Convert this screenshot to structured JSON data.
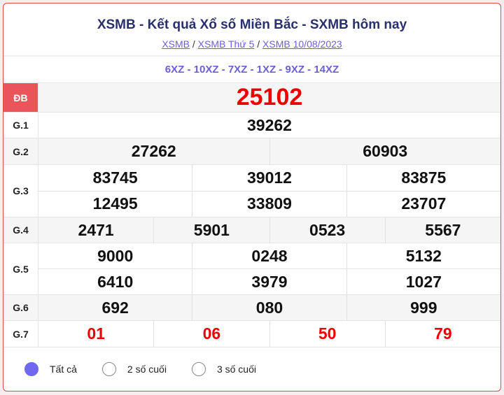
{
  "header": {
    "title": "XSMB - Kết quả Xổ số Miền Bắc - SXMB hôm nay",
    "breadcrumb": [
      "XSMB",
      "XSMB Thứ 5",
      "XSMB 10/08/2023"
    ],
    "separator": "/"
  },
  "codes": "6XZ - 10XZ - 7XZ - 1XZ - 9XZ - 14XZ",
  "prizes": [
    {
      "label": "ĐB",
      "rows": [
        [
          "25102"
        ]
      ]
    },
    {
      "label": "G.1",
      "rows": [
        [
          "39262"
        ]
      ]
    },
    {
      "label": "G.2",
      "rows": [
        [
          "27262",
          "60903"
        ]
      ]
    },
    {
      "label": "G.3",
      "rows": [
        [
          "83745",
          "39012",
          "83875"
        ],
        [
          "12495",
          "33809",
          "23707"
        ]
      ]
    },
    {
      "label": "G.4",
      "rows": [
        [
          "2471",
          "5901",
          "0523",
          "5567"
        ]
      ]
    },
    {
      "label": "G.5",
      "rows": [
        [
          "9000",
          "0248",
          "5132"
        ],
        [
          "6410",
          "3979",
          "1027"
        ]
      ]
    },
    {
      "label": "G.6",
      "rows": [
        [
          "692",
          "080",
          "999"
        ]
      ]
    },
    {
      "label": "G.7",
      "rows": [
        [
          "01",
          "06",
          "50",
          "79"
        ]
      ]
    }
  ],
  "filters": [
    {
      "label": "Tất cả",
      "selected": true
    },
    {
      "label": "2 số cuối",
      "selected": false
    },
    {
      "label": "3 số cuối",
      "selected": false
    }
  ],
  "colors": {
    "accent": "#6b5fd8",
    "special": "#e00000",
    "border": "#e5484d"
  }
}
